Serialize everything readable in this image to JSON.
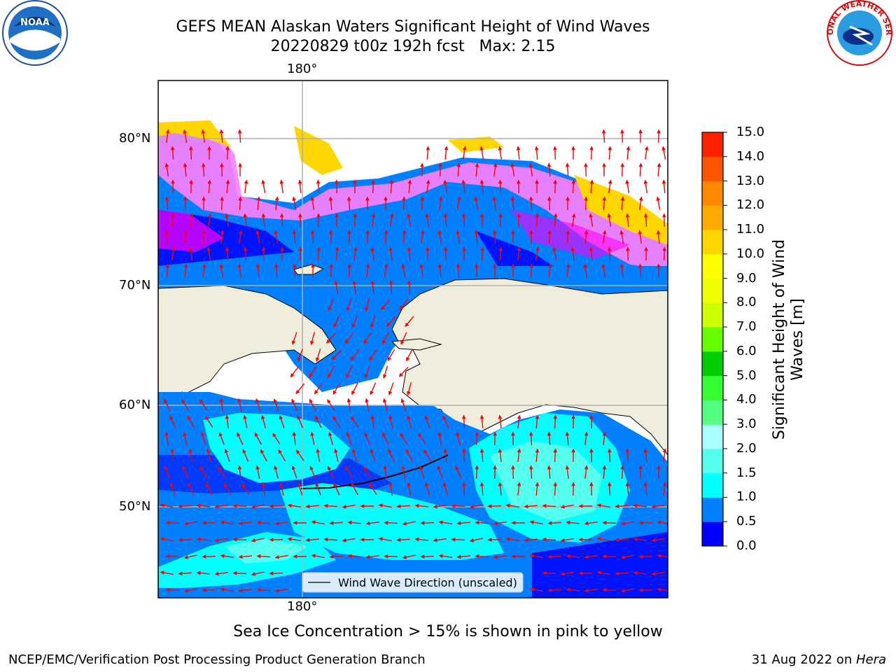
{
  "header": {
    "title_line1": "GEFS MEAN Alaskan Waters Significant Height of Wind Waves",
    "title_line2": "20220829 t00z 192h fcst   Max: 2.15"
  },
  "logos": {
    "left": "NOAA",
    "right": "NATIONAL WEATHER SERVICE"
  },
  "map": {
    "lon_labels": {
      "top": "180°",
      "bottom": "180°"
    },
    "lat_labels": [
      "80°N",
      "70°N",
      "60°N",
      "50°N"
    ],
    "legend_label": "Wind Wave Direction (unscaled)",
    "colors": {
      "land": "#efeddc",
      "ocean_low": "#0080ff",
      "ocean_min": "#0000ff",
      "ocean_mid": "#00ffff",
      "ocean_light": "#55fff0",
      "ice_pink": "#ff80ff",
      "ice_magenta": "#ff00ff",
      "ice_yellow": "#ffd700",
      "arrows": "#ff0000",
      "grid": "#b0b0b0"
    }
  },
  "colorbar": {
    "title": "Significant Height of Wind Waves [m]",
    "ticks": [
      "15.0",
      "14.0",
      "13.0",
      "12.0",
      "11.0",
      "10.0",
      "9.0",
      "8.0",
      "7.0",
      "6.0",
      "5.0",
      "4.0",
      "3.0",
      "2.0",
      "1.5",
      "1.0",
      "0.5",
      "0.0"
    ],
    "colors_bottom_to_top": [
      "#0000ff",
      "#0080ff",
      "#00ffff",
      "#55fff0",
      "#aaffff",
      "#55ff80",
      "#33ff33",
      "#00cc00",
      "#66ff00",
      "#ccff00",
      "#eeff00",
      "#ffff00",
      "#ffd700",
      "#ffaa00",
      "#ff8800",
      "#ff5500",
      "#ff2200"
    ]
  },
  "caption": "Sea Ice Concentration > 15% is shown in pink to yellow",
  "footer": {
    "left": "NCEP/EMC/Verification Post Processing Product Generation Branch",
    "right_date": "31 Aug 2022 on ",
    "right_machine": "Hera"
  }
}
